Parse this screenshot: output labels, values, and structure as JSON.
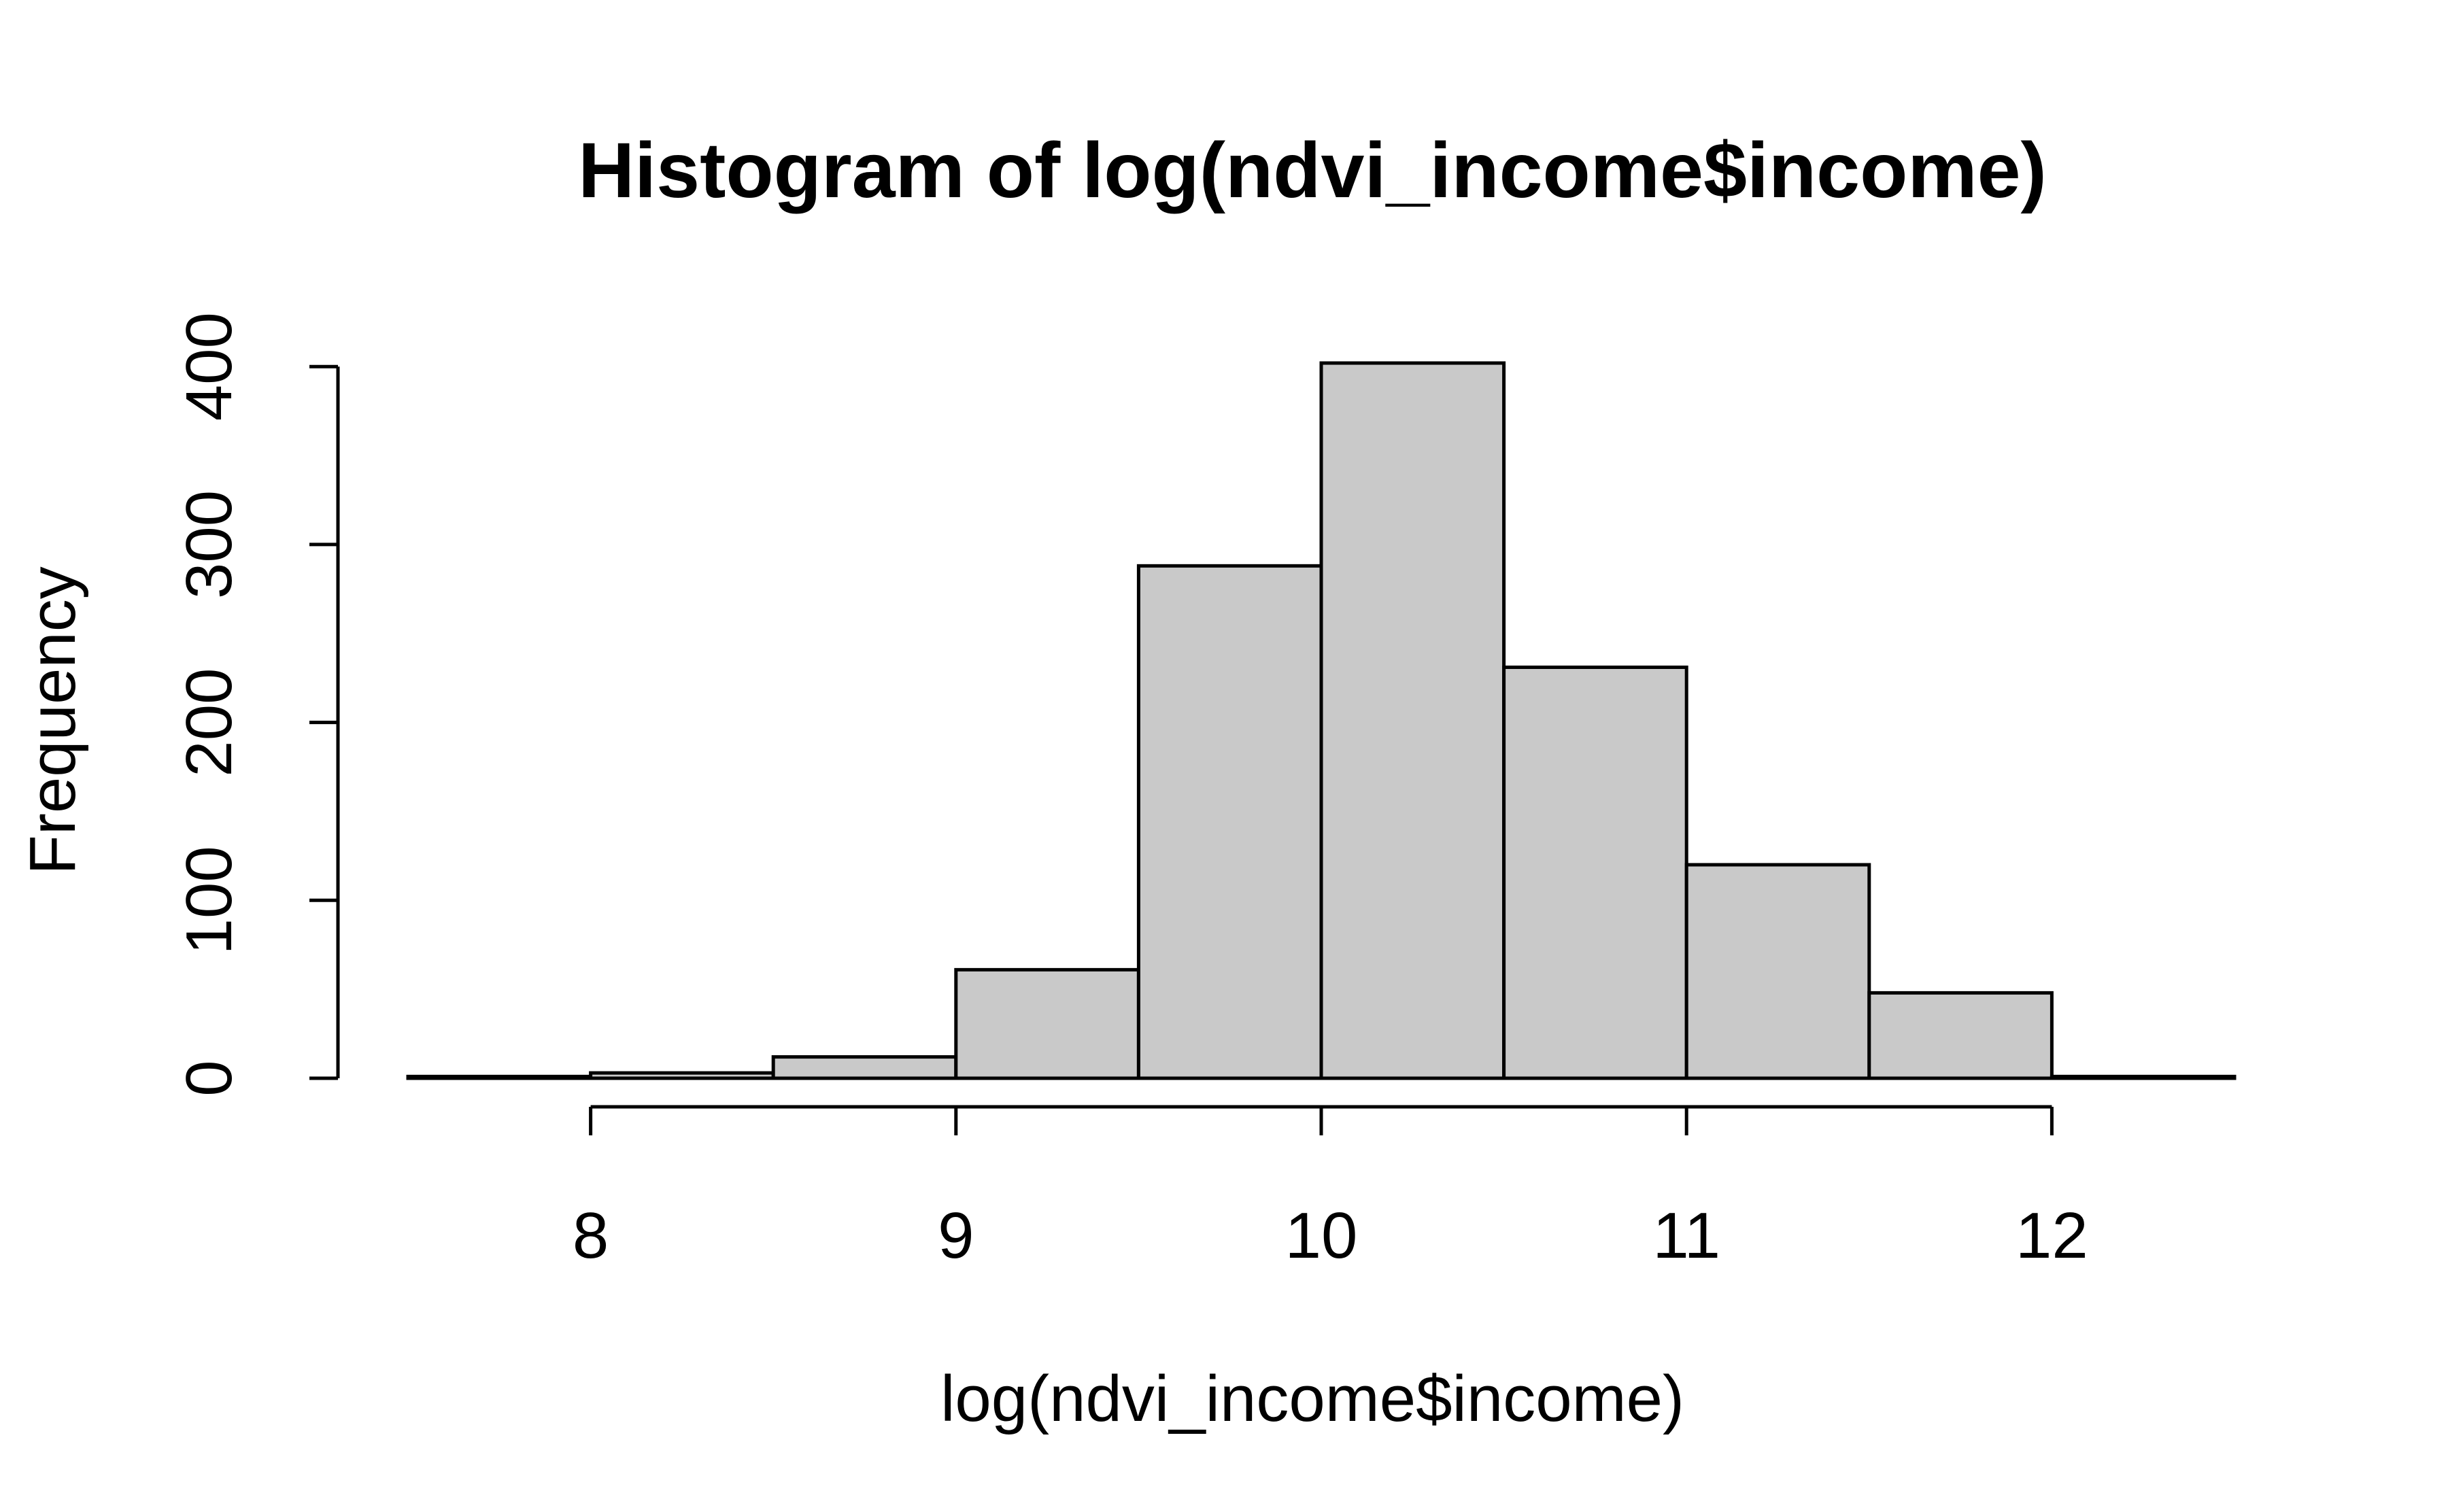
{
  "chart_data": {
    "type": "bar",
    "title": "Histogram of log(ndvi_income$income)",
    "xlabel": "log(ndvi_income$income)",
    "ylabel": "Frequency",
    "bins": [
      {
        "x0": 7.5,
        "x1": 8.0,
        "count": 1
      },
      {
        "x0": 8.0,
        "x1": 8.5,
        "count": 3
      },
      {
        "x0": 8.5,
        "x1": 9.0,
        "count": 12
      },
      {
        "x0": 9.0,
        "x1": 9.5,
        "count": 61
      },
      {
        "x0": 9.5,
        "x1": 10.0,
        "count": 288
      },
      {
        "x0": 10.0,
        "x1": 10.5,
        "count": 402
      },
      {
        "x0": 10.5,
        "x1": 11.0,
        "count": 231
      },
      {
        "x0": 11.0,
        "x1": 11.5,
        "count": 120
      },
      {
        "x0": 11.5,
        "x1": 12.0,
        "count": 48
      },
      {
        "x0": 12.0,
        "x1": 12.5,
        "count": 1
      }
    ],
    "x_ticks": [
      "8",
      "9",
      "10",
      "11",
      "12"
    ],
    "y_ticks": [
      "0",
      "100",
      "200",
      "300",
      "400"
    ],
    "xlim": [
      7.5,
      12.5
    ],
    "ylim": [
      0,
      402
    ],
    "grid": false,
    "bar_color": "#c9c9c9",
    "edge_color": "#000000"
  }
}
